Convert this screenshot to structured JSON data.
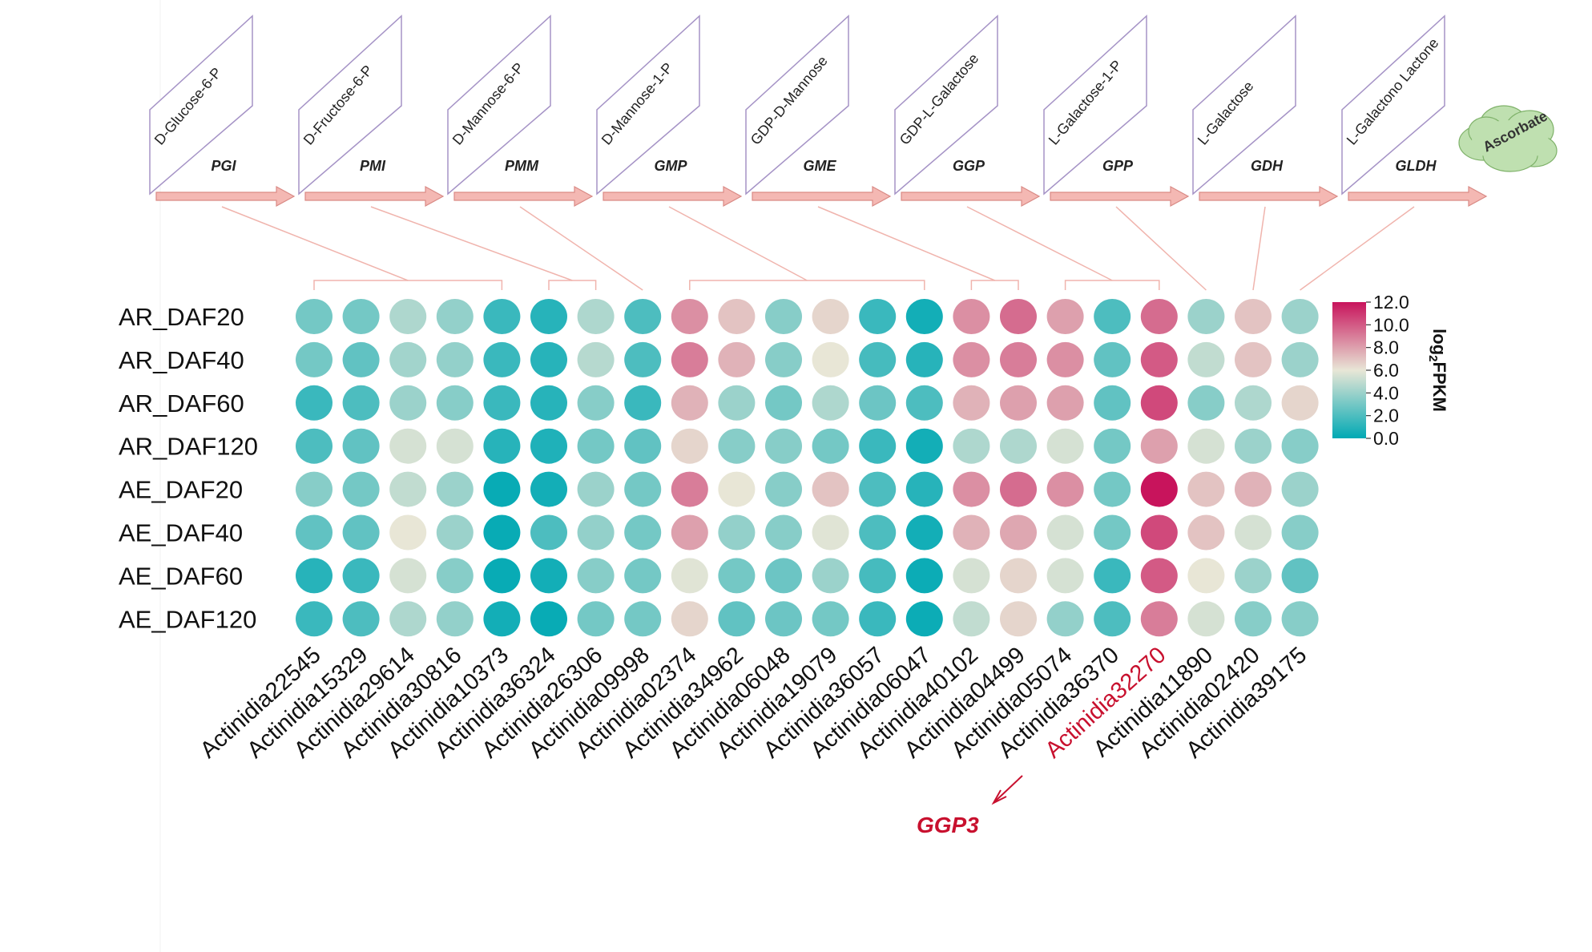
{
  "pathway": {
    "metabolites": [
      "D-Glucose-6-P",
      "D-Fructose-6-P",
      "D-Mannose-6-P",
      "D-Mannose-1-P",
      "GDP-D-Mannose",
      "GDP-L-Galactose",
      "L-Galactose-1-P",
      "L-Galactose",
      "L-Galactono Lactone"
    ],
    "enzymes": [
      "PGI",
      "PMI",
      "PMM",
      "GMP",
      "GME",
      "GGP",
      "GPP",
      "GDH",
      "GLDH"
    ],
    "product": "Ascorbate",
    "arrow_color": "#f4b8b3",
    "product_color": "#bfe0b0"
  },
  "chart_data": {
    "type": "heatmap",
    "rows": [
      "AR_DAF20",
      "AR_DAF40",
      "AR_DAF60",
      "AR_DAF120",
      "AE_DAF20",
      "AE_DAF40",
      "AE_DAF60",
      "AE_DAF120"
    ],
    "columns": [
      "Actinidia22545",
      "Actinidia15329",
      "Actinidia29614",
      "Actinidia30816",
      "Actinidia10373",
      "Actinidia36324",
      "Actinidia26306",
      "Actinidia09998",
      "Actinidia02374",
      "Actinidia34962",
      "Actinidia06048",
      "Actinidia19079",
      "Actinidia36057",
      "Actinidia06047",
      "Actinidia40102",
      "Actinidia04499",
      "Actinidia05074",
      "Actinidia36370",
      "Actinidia32270",
      "Actinidia11890",
      "Actinidia02420",
      "Actinidia39175"
    ],
    "values": [
      [
        3.0,
        3.0,
        4.5,
        3.8,
        1.5,
        1.0,
        4.5,
        2.0,
        8.5,
        7.0,
        3.5,
        6.5,
        1.5,
        0.5,
        8.5,
        9.5,
        8.0,
        2.0,
        9.5,
        4.0,
        7.0,
        4.0
      ],
      [
        3.0,
        2.5,
        4.2,
        3.8,
        1.5,
        1.0,
        4.7,
        2.0,
        9.0,
        7.5,
        3.5,
        6.0,
        1.8,
        1.0,
        8.5,
        9.0,
        8.5,
        2.5,
        10.0,
        5.0,
        7.0,
        4.0
      ],
      [
        1.5,
        2.0,
        4.0,
        3.5,
        1.5,
        1.0,
        3.5,
        1.5,
        7.5,
        4.0,
        3.0,
        4.5,
        2.8,
        2.0,
        7.5,
        8.0,
        8.0,
        2.5,
        10.5,
        3.5,
        4.5,
        6.5
      ],
      [
        2.0,
        2.5,
        5.5,
        5.5,
        1.0,
        0.8,
        3.0,
        2.5,
        6.5,
        3.5,
        3.5,
        3.0,
        1.5,
        0.5,
        4.5,
        4.5,
        5.5,
        3.0,
        8.0,
        5.5,
        4.0,
        3.5
      ],
      [
        3.5,
        3.0,
        5.0,
        4.0,
        0.2,
        0.5,
        4.0,
        3.0,
        9.0,
        6.0,
        3.5,
        7.0,
        2.0,
        1.0,
        8.5,
        9.5,
        8.5,
        3.0,
        12.0,
        7.0,
        7.5,
        4.0
      ],
      [
        2.5,
        2.5,
        6.0,
        4.0,
        0.2,
        2.0,
        3.8,
        3.0,
        8.0,
        3.8,
        3.5,
        5.8,
        2.0,
        0.5,
        7.5,
        7.8,
        5.5,
        3.0,
        10.5,
        7.0,
        5.5,
        3.5
      ],
      [
        1.0,
        1.5,
        5.5,
        3.5,
        0.2,
        0.5,
        3.5,
        3.0,
        5.8,
        3.0,
        2.8,
        4.0,
        1.8,
        0.3,
        5.5,
        6.5,
        5.5,
        1.5,
        10.0,
        6.0,
        4.0,
        2.5
      ],
      [
        1.5,
        2.0,
        4.5,
        3.8,
        0.5,
        0.2,
        3.0,
        3.0,
        6.5,
        2.5,
        2.8,
        3.0,
        1.5,
        0.3,
        5.0,
        6.5,
        3.8,
        2.0,
        9.0,
        5.5,
        3.5,
        3.5
      ]
    ],
    "highlight_column": "Actinidia32270",
    "highlight_color": "#c8102e",
    "annotation": "GGP3",
    "legend": {
      "title": "log2FPKM",
      "title_main": "log",
      "title_sub": "2",
      "title_tail": "FPKM",
      "ticks": [
        "0.0",
        "2.0",
        "4.0",
        "6.0",
        "8.0",
        "10.0",
        "12.0"
      ],
      "range": [
        0,
        12
      ],
      "colors": [
        "#00a9b4",
        "#e8e6d6",
        "#c8145c"
      ],
      "placement": "right"
    },
    "column_links": [
      {
        "enzyme": "PGI",
        "columns": [
          0,
          1,
          2,
          3,
          4
        ]
      },
      {
        "enzyme": "PMI",
        "columns": [
          5,
          6
        ]
      },
      {
        "enzyme": "PMM",
        "columns": [
          7
        ]
      },
      {
        "enzyme": "GMP",
        "columns": [
          8,
          9,
          10,
          11,
          12,
          13
        ]
      },
      {
        "enzyme": "GME",
        "columns": [
          14,
          15
        ]
      },
      {
        "enzyme": "GGP",
        "columns": [
          16,
          17,
          18
        ]
      },
      {
        "enzyme": "GPP",
        "columns": [
          19
        ]
      },
      {
        "enzyme": "GDH",
        "columns": [
          20
        ]
      },
      {
        "enzyme": "GLDH",
        "columns": [
          21
        ]
      }
    ]
  }
}
